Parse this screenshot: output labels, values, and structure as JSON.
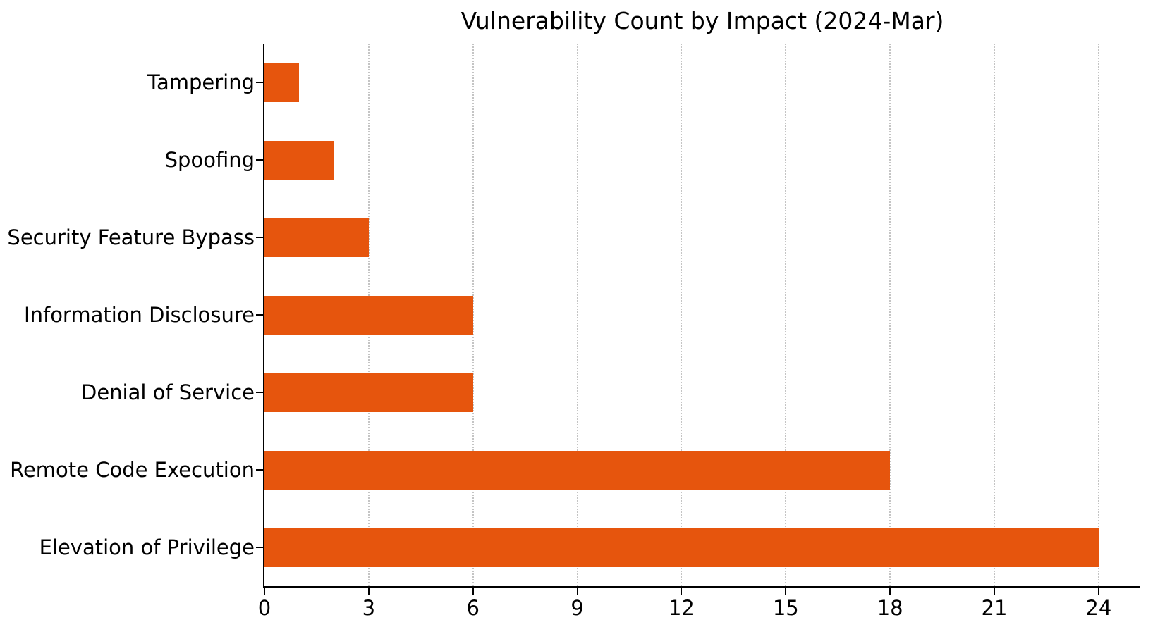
{
  "chart_data": {
    "type": "bar",
    "orientation": "horizontal",
    "title": "Vulnerability Count by Impact (2024-Mar)",
    "categories": [
      "Tampering",
      "Spoofing",
      "Security Feature Bypass",
      "Information Disclosure",
      "Denial of Service",
      "Remote Code Execution",
      "Elevation of Privilege"
    ],
    "values": [
      1,
      2,
      3,
      6,
      6,
      18,
      24
    ],
    "xlabel": "",
    "ylabel": "",
    "xlim": [
      0,
      25.2
    ],
    "xticks": [
      0,
      3,
      6,
      9,
      12,
      15,
      18,
      21,
      24
    ],
    "grid": "vertical-dotted",
    "legend": "none",
    "bar_color": "#e6550d",
    "gridline_color": "#c4c4c4",
    "axis_color": "#000000",
    "background_color": "#ffffff"
  }
}
